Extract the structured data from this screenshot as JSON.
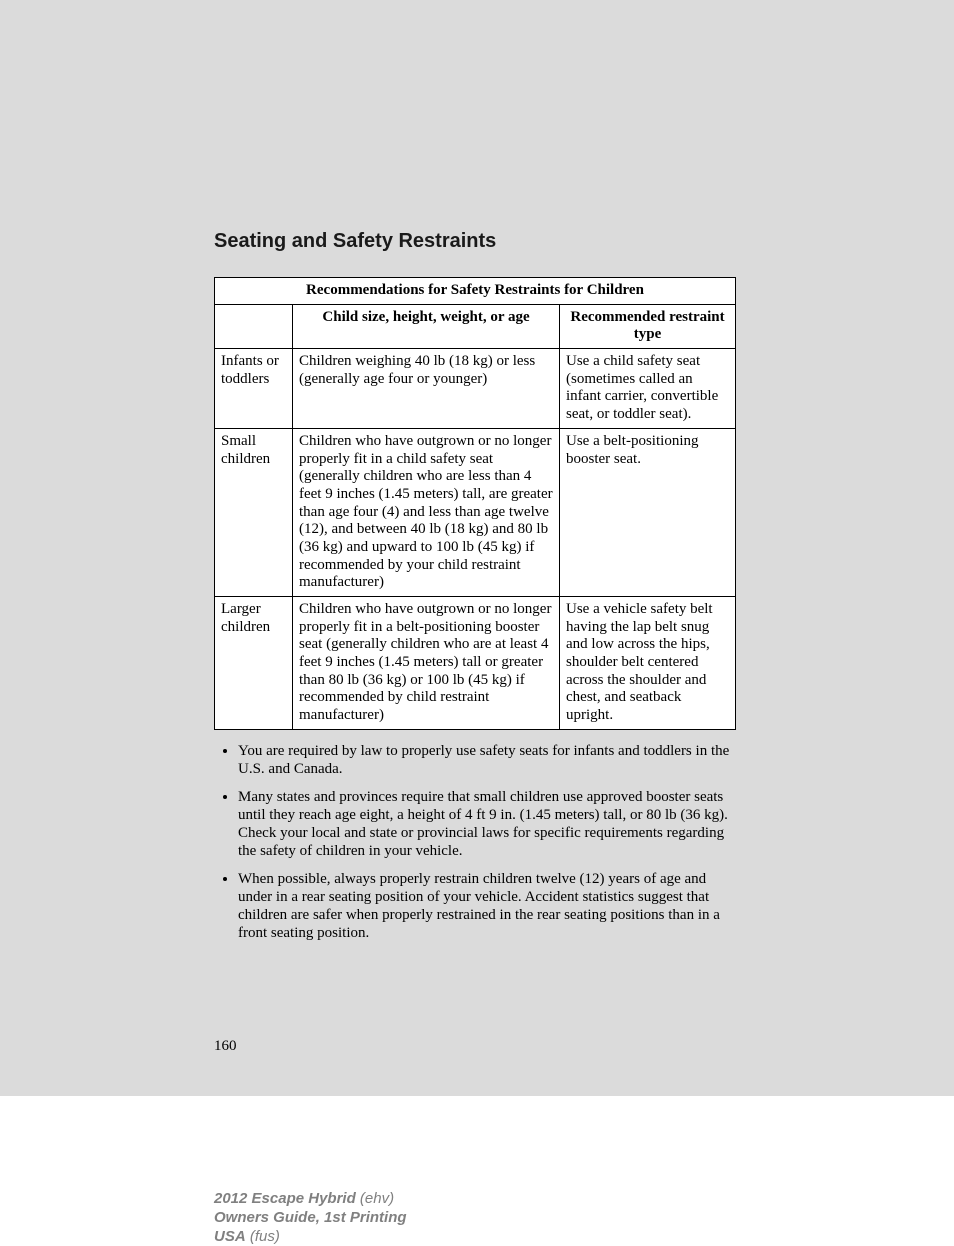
{
  "section_title": "Seating and Safety Restraints",
  "table": {
    "title": "Recommendations for Safety Restraints for Children",
    "header_col1": "",
    "header_col2": "Child size, height, weight, or age",
    "header_col3": "Recommended restraint type",
    "rows": [
      {
        "category": "Infants or toddlers",
        "desc": "Children weighing 40 lb (18 kg) or less (generally age four or younger)",
        "rec": "Use a child safety seat (sometimes called an infant carrier, convertible seat, or toddler seat)."
      },
      {
        "category": "Small children",
        "desc": "Children who have outgrown or no longer properly fit in a child safety seat (generally children who are less than 4 feet 9 inches (1.45 meters) tall, are greater than age four (4) and less than age twelve (12), and between 40 lb (18 kg) and 80 lb (36 kg) and upward to 100 lb (45 kg) if recommended by your child restraint manufacturer)",
        "rec": "Use a belt-positioning booster seat."
      },
      {
        "category": "Larger children",
        "desc": "Children who have outgrown or no longer properly fit in a belt-positioning booster seat (generally children who are at least 4 feet 9 inches (1.45 meters) tall or greater than 80 lb (36 kg) or 100 lb (45 kg) if recommended by child restraint manufacturer)",
        "rec": "Use a vehicle safety belt having the lap belt snug and low across the hips, shoulder belt centered across the shoulder and chest, and seatback upright."
      }
    ]
  },
  "bullets": [
    "You are required by law to properly use safety seats for infants and toddlers in the U.S. and Canada.",
    "Many states and provinces require that small children use approved booster seats until they reach age eight, a height of 4 ft 9 in. (1.45 meters) tall, or 80 lb (36 kg). Check your local and state or provincial laws for specific requirements regarding the safety of children in your vehicle.",
    "When possible, always properly restrain children twelve (12) years of age and under in a rear seating position of your vehicle. Accident statistics suggest that children are safer when properly restrained in the rear seating positions than in a front seating position."
  ],
  "page_number": "160",
  "footer": {
    "model_bold": "2012 Escape Hybrid",
    "model_rest": " (ehv)",
    "line2_bold": "Owners Guide, 1st Printing",
    "line3_bold": "USA",
    "line3_rest": " (fus)"
  },
  "colors": {
    "page_bg": "#dbdbdb",
    "text": "#000000",
    "footer_text": "#808080",
    "table_bg": "#ffffff"
  },
  "fonts": {
    "title": "Arial bold 20px",
    "body": "Times New Roman 15px",
    "footer": "Arial italic 15px"
  }
}
